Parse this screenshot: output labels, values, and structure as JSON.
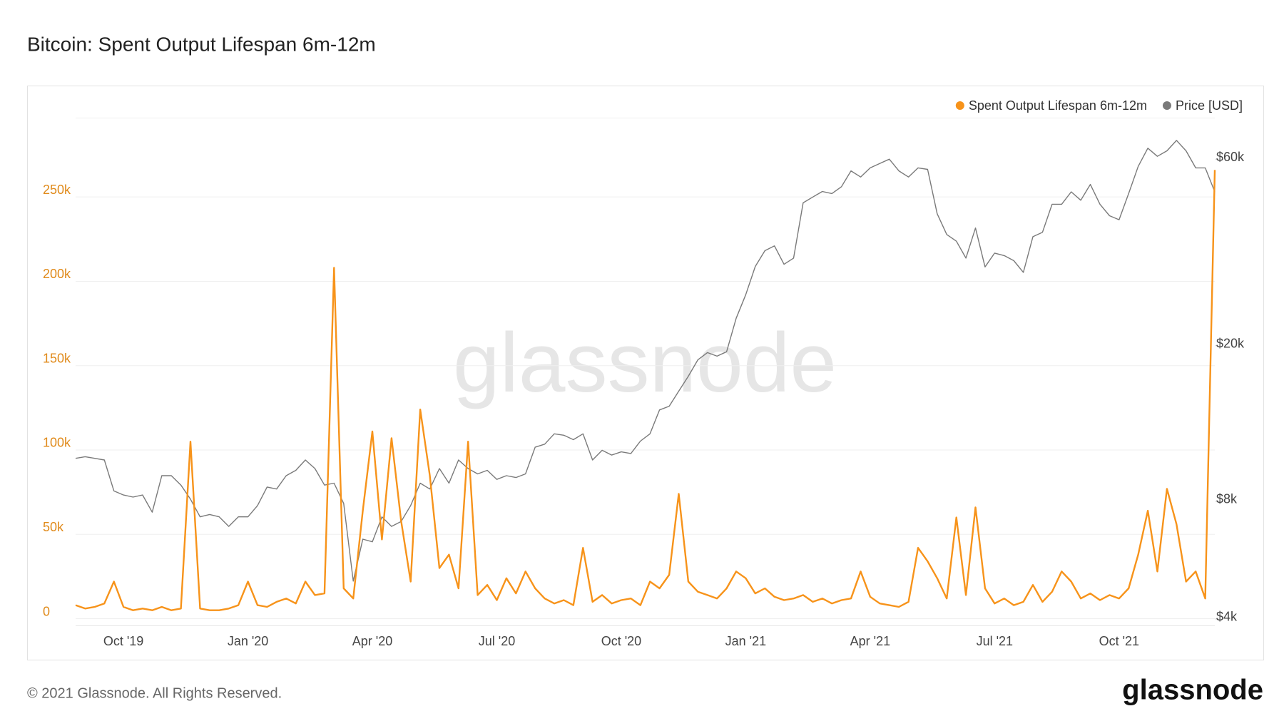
{
  "chart_data": {
    "type": "line",
    "title": "Bitcoin: Spent Output Lifespan 6m-12m",
    "watermark": "glassnode",
    "footer": "© 2021 Glassnode. All Rights Reserved.",
    "brand": "glassnode",
    "categories": [
      null,
      null,
      null,
      null,
      null,
      "Oct '19",
      null,
      null,
      null,
      null,
      null,
      null,
      null,
      null,
      null,
      null,
      null,
      null,
      "Jan '20",
      null,
      null,
      null,
      null,
      null,
      null,
      null,
      null,
      null,
      null,
      null,
      null,
      "Apr '20",
      null,
      null,
      null,
      null,
      null,
      null,
      null,
      null,
      null,
      null,
      null,
      null,
      "Jul '20",
      null,
      null,
      null,
      null,
      null,
      null,
      null,
      null,
      null,
      null,
      null,
      null,
      "Oct '20",
      null,
      null,
      null,
      null,
      null,
      null,
      null,
      null,
      null,
      null,
      null,
      null,
      "Jan '21",
      null,
      null,
      null,
      null,
      null,
      null,
      null,
      null,
      null,
      null,
      null,
      null,
      "Apr '21",
      null,
      null,
      null,
      null,
      null,
      null,
      null,
      null,
      null,
      null,
      null,
      null,
      "Jul '21",
      null,
      null,
      null,
      null,
      null,
      null,
      null,
      null,
      null,
      null,
      null,
      null,
      "Oct '21",
      null,
      null,
      null,
      null,
      null,
      null,
      null,
      null,
      null,
      null
    ],
    "series": [
      {
        "name": "Spent Output Lifespan 6m-12m",
        "color": "#f7931a",
        "axis": "y",
        "values": [
          8000,
          6000,
          7000,
          9000,
          22000,
          7000,
          5000,
          6000,
          5000,
          7000,
          5000,
          6000,
          105000,
          6000,
          5000,
          5000,
          6000,
          8000,
          22000,
          8000,
          7000,
          10000,
          12000,
          9000,
          22000,
          14000,
          15000,
          208000,
          18000,
          12000,
          64000,
          111000,
          47000,
          107000,
          58000,
          22000,
          124000,
          85000,
          30000,
          38000,
          18000,
          105000,
          14000,
          20000,
          11000,
          24000,
          15000,
          28000,
          18000,
          12000,
          9000,
          11000,
          8000,
          42000,
          10000,
          14000,
          9000,
          11000,
          12000,
          8000,
          22000,
          18000,
          26000,
          74000,
          22000,
          16000,
          14000,
          12000,
          18000,
          28000,
          24000,
          15000,
          18000,
          13000,
          11000,
          12000,
          14000,
          10000,
          12000,
          9000,
          11000,
          12000,
          28000,
          13000,
          9000,
          8000,
          7000,
          10000,
          42000,
          34000,
          24000,
          12000,
          60000,
          14000,
          66000,
          18000,
          9000,
          12000,
          8000,
          10000,
          20000,
          10000,
          16000,
          28000,
          22000,
          12000,
          15000,
          11000,
          14000,
          12000,
          18000,
          38000,
          64000,
          28000,
          77000,
          56000,
          22000,
          28000,
          12000,
          266000
        ]
      },
      {
        "name": "Price [USD]",
        "color": "#7a7a7a",
        "axis": "y2",
        "values": [
          10300,
          10400,
          10300,
          10200,
          8500,
          8300,
          8200,
          8300,
          7500,
          9300,
          9300,
          8800,
          8100,
          7300,
          7400,
          7300,
          6900,
          7300,
          7300,
          7800,
          8700,
          8600,
          9300,
          9600,
          10200,
          9700,
          8800,
          8900,
          7900,
          5000,
          6400,
          6300,
          7300,
          6900,
          7100,
          7800,
          8900,
          8600,
          9700,
          8900,
          10200,
          9700,
          9400,
          9600,
          9100,
          9300,
          9200,
          9400,
          11000,
          11200,
          11900,
          11800,
          11500,
          11900,
          10200,
          10800,
          10500,
          10700,
          10600,
          11400,
          11900,
          13700,
          14000,
          15300,
          16700,
          18400,
          19200,
          18800,
          19300,
          23500,
          27000,
          31900,
          35000,
          36000,
          32300,
          33500,
          46400,
          48000,
          49600,
          49000,
          51000,
          56000,
          54000,
          57000,
          58500,
          60000,
          56000,
          54000,
          57000,
          56500,
          43500,
          38500,
          37000,
          33500,
          40000,
          31800,
          34500,
          34000,
          33000,
          30800,
          38000,
          39000,
          46000,
          46000,
          49500,
          47100,
          51700,
          46000,
          43000,
          42000,
          49000,
          57500,
          64000,
          61000,
          63000,
          67000,
          63000,
          57000,
          57000,
          49500
        ]
      }
    ],
    "ylim": [
      -4000,
      297000
    ],
    "yticks": [
      0,
      {
        "value": 50000,
        "label": "50k"
      },
      {
        "value": 100000,
        "label": "100k"
      },
      {
        "value": 150000,
        "label": "150k"
      },
      {
        "value": 200000,
        "label": "200k"
      },
      {
        "value": 250000,
        "label": "250k"
      }
    ],
    "y2lim": [
      3850,
      76600
    ],
    "y2log": true,
    "y2ticks": [
      {
        "value": 4000,
        "label": "$4k"
      },
      {
        "value": 8000,
        "label": "$8k"
      },
      {
        "value": 20000,
        "label": "$20k"
      },
      {
        "value": 60000,
        "label": "$60k"
      }
    ],
    "grid": true,
    "legend": "top-right"
  }
}
